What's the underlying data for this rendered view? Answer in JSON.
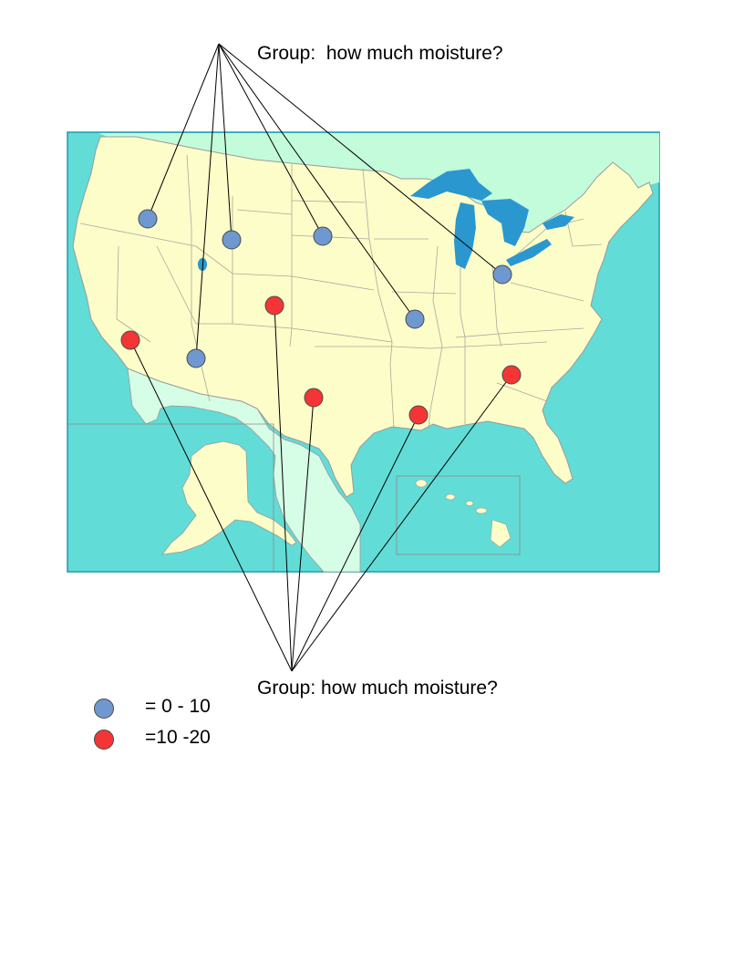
{
  "top_label": "Group:  how much moisture?",
  "bottom_label": "Group: how much moisture?",
  "legend": [
    {
      "text": "= 0 - 10",
      "color": "#6f97d0",
      "group": "blue"
    },
    {
      "text": "=10 -20",
      "color": "#f53535",
      "group": "red"
    }
  ],
  "colors": {
    "ocean": "#62dcd6",
    "land_us": "#fdfdc9",
    "land_canada": "#c2fcdb",
    "land_mexico": "#d6fde6",
    "lakes": "#2b97cf",
    "border": "#9a9a9a",
    "frame": "#1f99ad"
  },
  "markers": [
    {
      "name": "marker-idaho",
      "group": "blue"
    },
    {
      "name": "marker-wyoming",
      "group": "blue"
    },
    {
      "name": "marker-south-dakota",
      "group": "blue"
    },
    {
      "name": "marker-missouri",
      "group": "blue"
    },
    {
      "name": "marker-ohio",
      "group": "blue"
    },
    {
      "name": "marker-arizona",
      "group": "blue"
    },
    {
      "name": "marker-colorado",
      "group": "red"
    },
    {
      "name": "marker-southern-california",
      "group": "red"
    },
    {
      "name": "marker-texas",
      "group": "red"
    },
    {
      "name": "marker-louisiana",
      "group": "red"
    },
    {
      "name": "marker-georgia",
      "group": "red"
    }
  ]
}
